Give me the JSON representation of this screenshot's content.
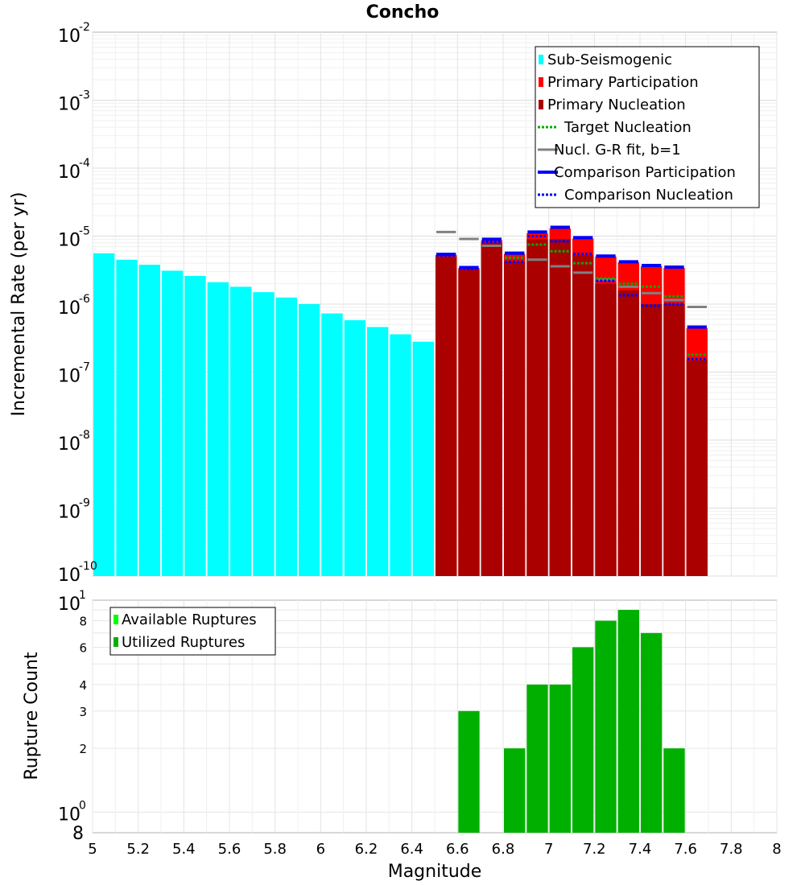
{
  "chart_data": [
    {
      "type": "bar",
      "title": "Concho",
      "ylabel": "Incremental Rate (per yr)",
      "xlabel": "",
      "y_scale": "log",
      "ylim": [
        1e-10,
        0.01
      ],
      "xlim": [
        5,
        8
      ],
      "y_tick_labels": [
        {
          "value": 1e-10,
          "base": "10",
          "exp": "-10"
        },
        {
          "value": 1e-09,
          "base": "10",
          "exp": "-9"
        },
        {
          "value": 1e-08,
          "base": "10",
          "exp": "-8"
        },
        {
          "value": 1e-07,
          "base": "10",
          "exp": "-7"
        },
        {
          "value": 1e-06,
          "base": "10",
          "exp": "-6"
        },
        {
          "value": 1e-05,
          "base": "10",
          "exp": "-5"
        },
        {
          "value": 0.0001,
          "base": "10",
          "exp": "-4"
        },
        {
          "value": 0.001,
          "base": "10",
          "exp": "-3"
        },
        {
          "value": 0.01,
          "base": "10",
          "exp": "-2"
        }
      ],
      "legend": [
        {
          "label": "Sub-Seismogenic",
          "color": "#00ffff",
          "style": "box"
        },
        {
          "label": "Primary Participation",
          "color": "#ff0000",
          "style": "box"
        },
        {
          "label": "Primary Nucleation",
          "color": "#aa0000",
          "style": "box"
        },
        {
          "label": "Target Nucleation",
          "color": "#00aa00",
          "style": "dotted"
        },
        {
          "label": "Nucl. G-R fit, b=1",
          "color": "#808080",
          "style": "line"
        },
        {
          "label": "Comparison Participation",
          "color": "#0000ff",
          "style": "thick"
        },
        {
          "label": "Comparison Nucleation",
          "color": "#0000ff",
          "style": "dotted"
        }
      ],
      "legend_position": "top-right",
      "bar_width": 0.1,
      "series": [
        {
          "name": "Sub-Seismogenic",
          "color": "#00ffff",
          "x": [
            5.05,
            5.15,
            5.25,
            5.35,
            5.45,
            5.55,
            5.65,
            5.75,
            5.85,
            5.95,
            6.05,
            6.15,
            6.25,
            6.35,
            6.45
          ],
          "values": [
            5.6e-06,
            4.5e-06,
            3.8e-06,
            3.1e-06,
            2.6e-06,
            2.1e-06,
            1.8e-06,
            1.5e-06,
            1.25e-06,
            1e-06,
            7.3e-07,
            5.8e-07,
            4.6e-07,
            3.6e-07,
            2.8e-07
          ]
        },
        {
          "name": "Primary Participation",
          "color": "#ff0000",
          "x": [
            6.55,
            6.65,
            6.75,
            6.85,
            6.95,
            7.05,
            7.15,
            7.25,
            7.35,
            7.45,
            7.55,
            7.65
          ],
          "values": [
            5.3e-06,
            3.4e-06,
            8.7e-06,
            5.5e-06,
            1.1e-05,
            1.3e-05,
            9.2e-06,
            5e-06,
            4.1e-06,
            3.6e-06,
            3.4e-06,
            4.4e-07
          ]
        },
        {
          "name": "Primary Nucleation",
          "color": "#aa0000",
          "x": [
            6.55,
            6.65,
            6.75,
            6.85,
            6.95,
            7.05,
            7.15,
            7.25,
            7.35,
            7.45,
            7.55,
            7.65
          ],
          "values": [
            5e-06,
            3.2e-06,
            8e-06,
            4.2e-06,
            9e-06,
            9e-06,
            5.3e-06,
            2e-06,
            1.6e-06,
            1e-06,
            1e-06,
            1.5e-07
          ]
        },
        {
          "name": "Target Nucleation",
          "color": "#00aa00",
          "x": [
            6.85,
            6.95,
            7.05,
            7.15,
            7.25,
            7.35,
            7.45,
            7.55,
            7.65
          ],
          "values": [
            4.8e-06,
            7.5e-06,
            6e-06,
            4e-06,
            2.4e-06,
            2e-06,
            1.8e-06,
            1.3e-06,
            1.8e-07
          ]
        },
        {
          "name": "Nucl. G-R fit, b=1",
          "color": "#808080",
          "x": [
            6.55,
            6.65,
            6.75,
            6.85,
            6.95,
            7.05,
            7.15,
            7.25,
            7.35,
            7.45,
            7.55,
            7.65
          ],
          "values": [
            1.15e-05,
            9.1e-06,
            7.2e-06,
            5.7e-06,
            4.5e-06,
            3.6e-06,
            2.9e-06,
            2.3e-06,
            1.8e-06,
            1.45e-06,
            1.15e-06,
            9.1e-07
          ]
        },
        {
          "name": "Comparison Participation",
          "color": "#0000ff",
          "x": [
            6.55,
            6.65,
            6.75,
            6.85,
            6.95,
            7.05,
            7.15,
            7.25,
            7.35,
            7.45,
            7.55,
            7.65
          ],
          "values": [
            5.4e-06,
            3.45e-06,
            9e-06,
            5.6e-06,
            1.15e-05,
            1.35e-05,
            9.5e-06,
            5.1e-06,
            4.2e-06,
            3.7e-06,
            3.5e-06,
            4.6e-07
          ]
        },
        {
          "name": "Comparison Nucleation",
          "color": "#0000ff",
          "x": [
            6.55,
            6.65,
            6.75,
            6.85,
            6.95,
            7.05,
            7.15,
            7.25,
            7.35,
            7.45,
            7.55,
            7.65
          ],
          "values": [
            5.2e-06,
            3.3e-06,
            8.2e-06,
            4.2e-06,
            1e-05,
            8.4e-06,
            5.5e-06,
            2.2e-06,
            1.35e-06,
            9.5e-07,
            1e-06,
            1.55e-07
          ]
        }
      ]
    },
    {
      "type": "bar",
      "title": "",
      "ylabel": "Rupture Count",
      "xlabel": "Magnitude",
      "y_scale": "log",
      "ylim": [
        0.8,
        10
      ],
      "xlim": [
        5,
        8
      ],
      "x_ticks": [
        5,
        5.2,
        5.4,
        5.6,
        5.8,
        6,
        6.2,
        6.4,
        6.6,
        6.8,
        7,
        7.2,
        7.4,
        7.6,
        7.8,
        8
      ],
      "x_tick_labels": [
        "5",
        "5.2",
        "5.4",
        "5.6",
        "5.8",
        "6",
        "6.2",
        "6.4",
        "6.6",
        "6.8",
        "7",
        "7.2",
        "7.4",
        "7.6",
        "7.8",
        "8"
      ],
      "y_tick_labels_small": [
        {
          "value": 2,
          "label": "2"
        },
        {
          "value": 3,
          "label": "3"
        },
        {
          "value": 4,
          "label": "4"
        },
        {
          "value": 6,
          "label": "6"
        },
        {
          "value": 8,
          "label": "8"
        }
      ],
      "y_tick_labels_big": [
        {
          "value": 0.8,
          "label": "8",
          "exp": ""
        },
        {
          "value": 1,
          "label": "10",
          "exp": "0"
        },
        {
          "value": 10,
          "label": "10",
          "exp": "1"
        }
      ],
      "legend": [
        {
          "label": "Available Ruptures",
          "color": "#00ff00"
        },
        {
          "label": "Utilized Ruptures",
          "color": "#00b000"
        }
      ],
      "legend_position": "top-left",
      "bar_width": 0.1,
      "series": [
        {
          "name": "Utilized Ruptures",
          "color": "#00b000",
          "x": [
            6.65,
            6.85,
            6.95,
            7.05,
            7.15,
            7.25,
            7.35,
            7.45,
            7.55
          ],
          "values": [
            3,
            2,
            4,
            4,
            6,
            8,
            9,
            7,
            2
          ]
        }
      ]
    }
  ]
}
